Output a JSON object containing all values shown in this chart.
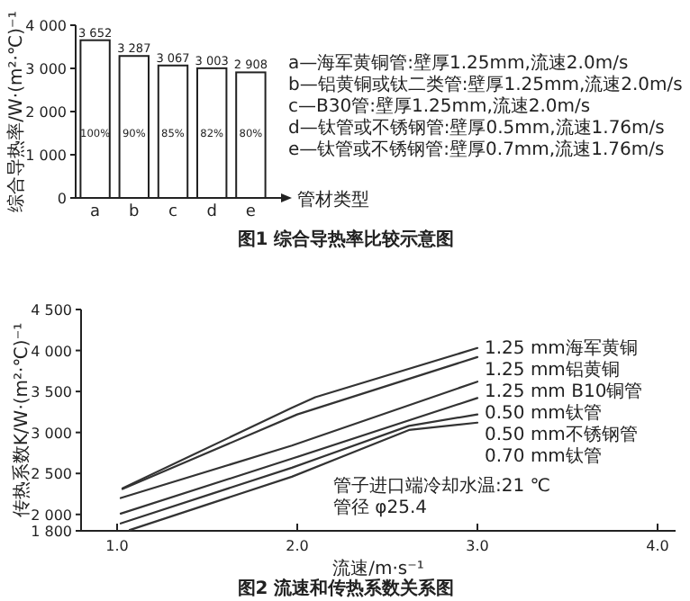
{
  "chart_data": [
    {
      "type": "bar",
      "title": "图1 综合导热率比较示意图",
      "xlabel": "管材类型",
      "ylabel": "综合导热率/W·(m²·℃)⁻¹",
      "categories": [
        "a",
        "b",
        "c",
        "d",
        "e"
      ],
      "values": [
        3652,
        3287,
        3067,
        3003,
        2908
      ],
      "color": "#ffffff",
      "value_labels": [
        "3 652",
        "3 287",
        "3 067",
        "3 003",
        "2 908"
      ],
      "ylim": [
        0,
        4000
      ],
      "yticks": [
        0,
        {
          "value": 1000,
          "label": "1 000"
        },
        {
          "value": 2000,
          "label": "2 000"
        },
        {
          "value": 3000,
          "label": "3 000"
        },
        {
          "value": 4000,
          "label": "4 000"
        }
      ],
      "annotations": [
        "a—海军黄铜管:壁厚1.25mm,流速2.0m/s",
        "b—铝黄铜或钛二类管:壁厚1.25mm,流速2.0m/s",
        "c—B30管:壁厚1.25mm,流速2.0m/s",
        "d—钛管或不锈钢管:壁厚0.5mm,流速1.76m/s",
        "e—钛管或不锈钢管:壁厚0.7mm,流速1.76m/s",
        "100%",
        "90%",
        "85%",
        "82%",
        "80%"
      ]
    },
    {
      "type": "line",
      "title": "图2 流速和传热系数关系图",
      "xlabel": "流速/m·s⁻¹",
      "ylabel": "传热系数K/W·(m²·℃)⁻¹",
      "marker": "none",
      "line_style": "solid",
      "xlim": [
        0.8,
        4.1
      ],
      "xticks": [
        {
          "value": 1,
          "label": "1.0"
        },
        {
          "value": 2,
          "label": "2.0"
        },
        {
          "value": 3,
          "label": "3.0"
        },
        {
          "value": 4,
          "label": "4.0"
        }
      ],
      "ylim": [
        1800,
        4500
      ],
      "yticks": [
        {
          "value": 1800,
          "label": "1 800"
        },
        {
          "value": 2000,
          "label": "2 000"
        },
        {
          "value": 2500,
          "label": "2 500"
        },
        {
          "value": 3000,
          "label": "3 000"
        },
        {
          "value": 3500,
          "label": "3 500"
        },
        {
          "value": 4000,
          "label": "4 000"
        },
        {
          "value": 4500,
          "label": "4 500"
        }
      ],
      "series": [
        {
          "name": "1.25 mm海军黄铜",
          "color": "#333333",
          "x": [
            1.03,
            1.97,
            2.1,
            3.0
          ],
          "values": [
            2320,
            3300,
            3430,
            4030
          ]
        },
        {
          "name": "1.25 mm铝黄铜",
          "color": "#333333",
          "x": [
            1.03,
            2.0,
            3.0
          ],
          "values": [
            2310,
            3220,
            3920
          ]
        },
        {
          "name": "1.25 mm B10铜管",
          "color": "#333333",
          "x": [
            1.02,
            1.97,
            3.0
          ],
          "values": [
            2200,
            2840,
            3620
          ]
        },
        {
          "name": "0.50 mm钛管",
          "color": "#333333",
          "x": [
            1.02,
            1.97,
            3.0
          ],
          "values": [
            2010,
            2680,
            3420
          ]
        },
        {
          "name": "0.50 mm不锈钢管",
          "color": "#333333",
          "x": [
            1.02,
            1.97,
            2.62,
            3.0
          ],
          "values": [
            1890,
            2570,
            3080,
            3220
          ]
        },
        {
          "name": "0.70 mm钛管",
          "color": "#333333",
          "x": [
            1.07,
            1.97,
            2.62,
            3.0
          ],
          "values": [
            1810,
            2460,
            3030,
            3120
          ]
        }
      ],
      "annotations": [
        "管子进口端冷却水温:21 ℃",
        "管径 φ25.4"
      ]
    }
  ]
}
